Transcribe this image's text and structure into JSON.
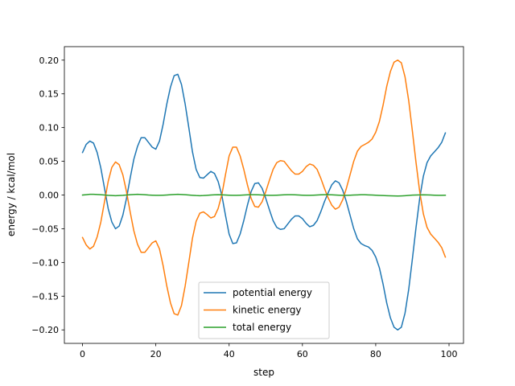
{
  "chart_data": {
    "type": "line",
    "xlabel": "step",
    "ylabel": "energy / kcal/mol",
    "xlim": [
      -4.95,
      103.95
    ],
    "ylim": [
      -0.22,
      0.22
    ],
    "xticks": [
      0,
      20,
      40,
      60,
      80,
      100
    ],
    "yticks": [
      -0.2,
      -0.15,
      -0.1,
      -0.05,
      0.0,
      0.05,
      0.1,
      0.15,
      0.2
    ],
    "ytick_labels": [
      "−0.20",
      "−0.15",
      "−0.10",
      "−0.05",
      "0.00",
      "0.05",
      "0.10",
      "0.15",
      "0.20"
    ],
    "grid": false,
    "legend_position": "lower-center",
    "series": [
      {
        "name": "potential energy",
        "color": "#1f77b4",
        "x": [
          0,
          1,
          2,
          3,
          4,
          5,
          6,
          7,
          8,
          9,
          10,
          11,
          12,
          13,
          14,
          15,
          16,
          17,
          18,
          19,
          20,
          21,
          22,
          23,
          24,
          25,
          26,
          27,
          28,
          29,
          30,
          31,
          32,
          33,
          34,
          35,
          36,
          37,
          38,
          39,
          40,
          41,
          42,
          43,
          44,
          45,
          46,
          47,
          48,
          49,
          50,
          51,
          52,
          53,
          54,
          55,
          56,
          57,
          58,
          59,
          60,
          61,
          62,
          63,
          64,
          65,
          66,
          67,
          68,
          69,
          70,
          71,
          72,
          73,
          74,
          75,
          76,
          77,
          78,
          79,
          80,
          81,
          82,
          83,
          84,
          85,
          86,
          87,
          88,
          89,
          90,
          91,
          92,
          93,
          94,
          95,
          96,
          97,
          98,
          99
        ],
        "y": [
          0.063,
          0.075,
          0.08,
          0.077,
          0.063,
          0.04,
          0.01,
          -0.02,
          -0.04,
          -0.05,
          -0.046,
          -0.03,
          -0.005,
          0.025,
          0.053,
          0.072,
          0.085,
          0.085,
          0.078,
          0.071,
          0.068,
          0.08,
          0.105,
          0.135,
          0.16,
          0.177,
          0.179,
          0.164,
          0.135,
          0.1,
          0.064,
          0.038,
          0.026,
          0.025,
          0.03,
          0.035,
          0.032,
          0.02,
          0.0,
          -0.03,
          -0.058,
          -0.072,
          -0.071,
          -0.058,
          -0.038,
          -0.015,
          0.005,
          0.017,
          0.018,
          0.01,
          -0.005,
          -0.022,
          -0.038,
          -0.048,
          -0.051,
          -0.05,
          -0.043,
          -0.036,
          -0.031,
          -0.031,
          -0.035,
          -0.042,
          -0.047,
          -0.045,
          -0.038,
          -0.025,
          -0.01,
          0.003,
          0.015,
          0.021,
          0.018,
          0.007,
          -0.01,
          -0.03,
          -0.05,
          -0.065,
          -0.072,
          -0.075,
          -0.077,
          -0.082,
          -0.092,
          -0.108,
          -0.132,
          -0.16,
          -0.182,
          -0.196,
          -0.2,
          -0.196,
          -0.175,
          -0.14,
          -0.095,
          -0.048,
          -0.005,
          0.028,
          0.048,
          0.058,
          0.064,
          0.07,
          0.078,
          0.092
        ]
      },
      {
        "name": "kinetic energy",
        "color": "#ff7f0e",
        "x": [
          0,
          1,
          2,
          3,
          4,
          5,
          6,
          7,
          8,
          9,
          10,
          11,
          12,
          13,
          14,
          15,
          16,
          17,
          18,
          19,
          20,
          21,
          22,
          23,
          24,
          25,
          26,
          27,
          28,
          29,
          30,
          31,
          32,
          33,
          34,
          35,
          36,
          37,
          38,
          39,
          40,
          41,
          42,
          43,
          44,
          45,
          46,
          47,
          48,
          49,
          50,
          51,
          52,
          53,
          54,
          55,
          56,
          57,
          58,
          59,
          60,
          61,
          62,
          63,
          64,
          65,
          66,
          67,
          68,
          69,
          70,
          71,
          72,
          73,
          74,
          75,
          76,
          77,
          78,
          79,
          80,
          81,
          82,
          83,
          84,
          85,
          86,
          87,
          88,
          89,
          90,
          91,
          92,
          93,
          94,
          95,
          96,
          97,
          98,
          99
        ],
        "y": [
          -0.063,
          -0.074,
          -0.08,
          -0.076,
          -0.062,
          -0.04,
          -0.01,
          0.02,
          0.041,
          0.049,
          0.045,
          0.03,
          0.005,
          -0.025,
          -0.053,
          -0.073,
          -0.085,
          -0.085,
          -0.078,
          -0.071,
          -0.068,
          -0.08,
          -0.105,
          -0.135,
          -0.16,
          -0.176,
          -0.178,
          -0.164,
          -0.135,
          -0.1,
          -0.064,
          -0.039,
          -0.027,
          -0.025,
          -0.029,
          -0.034,
          -0.032,
          -0.02,
          0.0,
          0.03,
          0.058,
          0.071,
          0.071,
          0.058,
          0.038,
          0.015,
          -0.005,
          -0.017,
          -0.018,
          -0.01,
          0.005,
          0.022,
          0.038,
          0.048,
          0.051,
          0.05,
          0.043,
          0.036,
          0.031,
          0.031,
          0.035,
          0.042,
          0.046,
          0.044,
          0.038,
          0.025,
          0.01,
          -0.004,
          -0.015,
          -0.021,
          -0.018,
          -0.007,
          0.01,
          0.03,
          0.05,
          0.065,
          0.072,
          0.075,
          0.078,
          0.083,
          0.093,
          0.109,
          0.133,
          0.161,
          0.183,
          0.197,
          0.2,
          0.196,
          0.175,
          0.14,
          0.095,
          0.048,
          0.005,
          -0.028,
          -0.048,
          -0.058,
          -0.064,
          -0.07,
          -0.078,
          -0.092
        ]
      },
      {
        "name": "total energy",
        "color": "#2ca02c",
        "x": [
          0,
          1,
          2,
          3,
          4,
          5,
          6,
          7,
          8,
          9,
          10,
          11,
          12,
          13,
          14,
          15,
          16,
          17,
          18,
          19,
          20,
          21,
          22,
          23,
          24,
          25,
          26,
          27,
          28,
          29,
          30,
          31,
          32,
          33,
          34,
          35,
          36,
          37,
          38,
          39,
          40,
          41,
          42,
          43,
          44,
          45,
          46,
          47,
          48,
          49,
          50,
          51,
          52,
          53,
          54,
          55,
          56,
          57,
          58,
          59,
          60,
          61,
          62,
          63,
          64,
          65,
          66,
          67,
          68,
          69,
          70,
          71,
          72,
          73,
          74,
          75,
          76,
          77,
          78,
          79,
          80,
          81,
          82,
          83,
          84,
          85,
          86,
          87,
          88,
          89,
          90,
          91,
          92,
          93,
          94,
          95,
          96,
          97,
          98,
          99
        ],
        "y": [
          0.0,
          0.0005,
          0.001,
          0.001,
          0.0008,
          0.0004,
          0.0,
          -0.0005,
          -0.0008,
          -0.001,
          -0.0008,
          -0.0005,
          0.0,
          0.0005,
          0.0008,
          0.001,
          0.0008,
          0.0005,
          0.0,
          -0.0003,
          -0.0005,
          -0.0005,
          -0.0003,
          0.0,
          0.0004,
          0.0008,
          0.001,
          0.0008,
          0.0004,
          0.0,
          -0.0004,
          -0.0008,
          -0.001,
          -0.0008,
          -0.0004,
          0.0,
          0.0003,
          0.0005,
          0.0003,
          0.0,
          -0.0003,
          -0.0005,
          -0.0005,
          -0.0003,
          0.0,
          0.0003,
          0.0005,
          0.0005,
          0.0003,
          0.0,
          -0.0003,
          -0.0005,
          -0.0005,
          -0.0003,
          0.0,
          0.0003,
          0.0005,
          0.0005,
          0.0003,
          0.0,
          -0.0003,
          -0.0005,
          -0.0005,
          -0.0003,
          0.0,
          0.0003,
          0.0005,
          0.0005,
          0.0003,
          0.0,
          -0.0003,
          -0.0005,
          -0.0005,
          -0.0003,
          0.0,
          0.0002,
          0.0004,
          0.0004,
          0.0002,
          0.0,
          -0.0003,
          -0.0006,
          -0.0008,
          -0.001,
          -0.0012,
          -0.0014,
          -0.0015,
          -0.0013,
          -0.001,
          -0.0006,
          -0.0002,
          0.0,
          0.0002,
          0.0003,
          0.0002,
          0.0,
          -0.0003,
          -0.0005,
          -0.0005,
          -0.0003
        ]
      }
    ]
  }
}
